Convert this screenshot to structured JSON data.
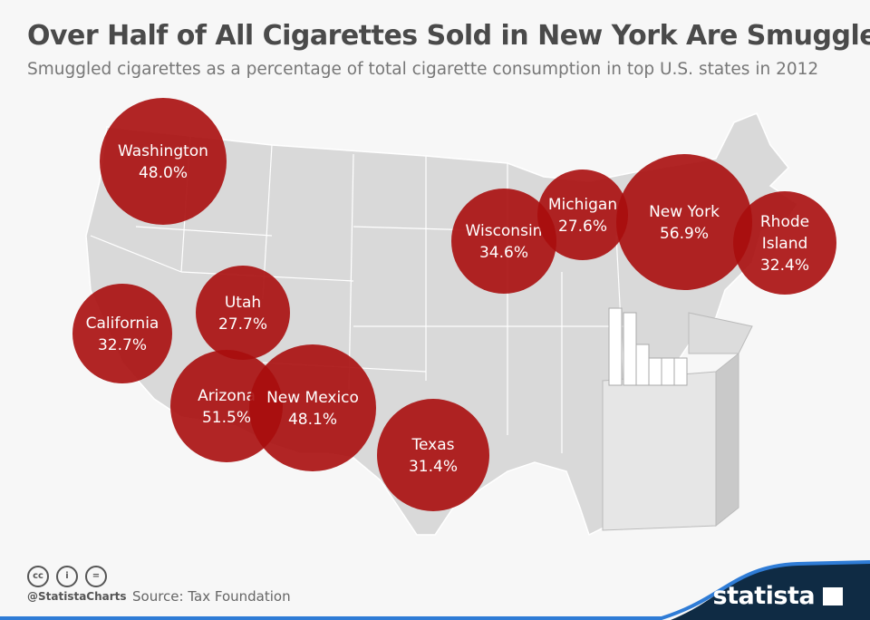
{
  "title": "Over Half of All Cigarettes Sold in New York Are Smuggled",
  "subtitle": "Smuggled cigarettes as a percentage of total cigarette consumption in top U.S. states in 2012",
  "colors": {
    "bubble": "#a80d0d",
    "map": "#d8d8d8",
    "map_border": "#ffffff",
    "brand_dark": "#0f2b44",
    "brand_blue": "#2f7cd6"
  },
  "chart_data": {
    "type": "bubble-map",
    "title": "Over Half of All Cigarettes Sold in New York Are Smuggled",
    "subtitle": "Smuggled cigarettes as a percentage of total cigarette consumption in top U.S. states in 2012",
    "unit": "%",
    "points": [
      {
        "state": "Washington",
        "value": 48.0,
        "label": "48.0%"
      },
      {
        "state": "California",
        "value": 32.7,
        "label": "32.7%"
      },
      {
        "state": "Utah",
        "value": 27.7,
        "label": "27.7%"
      },
      {
        "state": "Arizona",
        "value": 51.5,
        "label": "51.5%"
      },
      {
        "state": "New Mexico",
        "value": 48.1,
        "label": "48.1%"
      },
      {
        "state": "Texas",
        "value": 31.4,
        "label": "31.4%"
      },
      {
        "state": "Wisconsin",
        "value": 34.6,
        "label": "34.6%"
      },
      {
        "state": "Michigan",
        "value": 27.6,
        "label": "27.6%"
      },
      {
        "state": "New York",
        "value": 56.9,
        "label": "56.9%"
      },
      {
        "state": "Rhode Island",
        "value": 32.4,
        "label": "32.4%"
      }
    ]
  },
  "footer": {
    "handle": "@StatistaCharts",
    "source": "Source: Tax Foundation",
    "license_icons": [
      "cc-icon",
      "by-icon",
      "nd-icon"
    ],
    "brand": "statista"
  }
}
